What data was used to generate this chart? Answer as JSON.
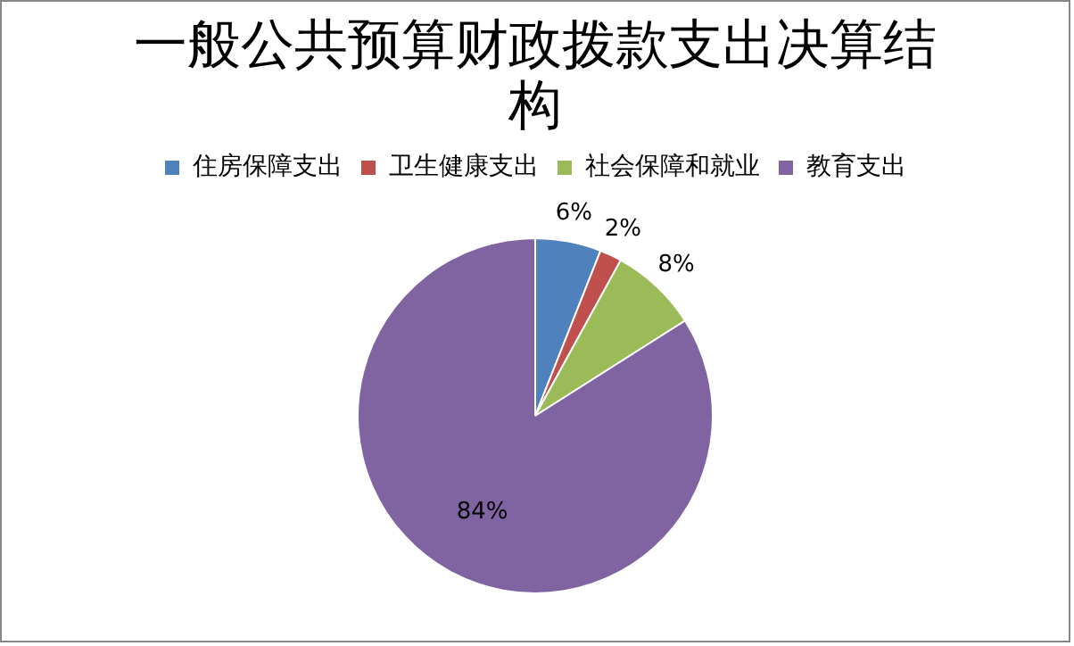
{
  "chart_data": {
    "type": "pie",
    "title": "一般公共预算财政拨款支出决算结构",
    "categories": [
      "住房保障支出",
      "卫生健康支出",
      "社会保障和就业",
      "教育支出"
    ],
    "values": [
      6,
      2,
      8,
      84
    ],
    "colors": [
      "#4f81bd",
      "#c0504d",
      "#9bbb59",
      "#8064a2"
    ],
    "value_labels": [
      "6%",
      "2%",
      "8%",
      "84%"
    ],
    "legend": "top"
  }
}
